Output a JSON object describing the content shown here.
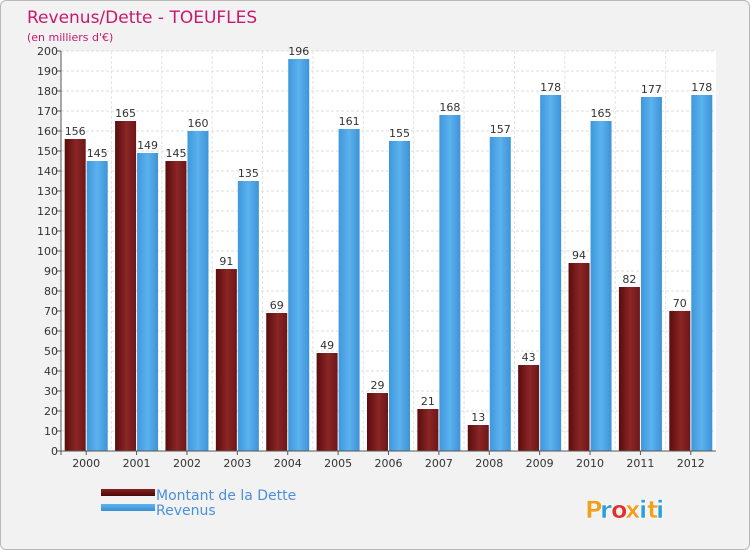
{
  "header": {
    "title": "Revenus/Dette - TOEUFLES",
    "subtitle": "(en milliers d'€)"
  },
  "brand": {
    "letters": [
      "P",
      "r",
      "o",
      "x",
      "i",
      "t",
      "i"
    ],
    "colors": [
      "#f0a020",
      "#2aa0d8",
      "#e03030",
      "#f0a020",
      "#2aa0d8",
      "#f0a020",
      "#2aa0d8"
    ]
  },
  "colors": {
    "dette": "#7b1a1a",
    "revenus": "#4aa3e6",
    "title": "#c8186e",
    "legend_text": "#4a90d9",
    "axis": "#555555"
  },
  "chart_data": {
    "type": "bar",
    "title": "Revenus/Dette - TOEUFLES",
    "ylabel": "(en milliers d'€)",
    "xlabel": "",
    "categories": [
      "2000",
      "2001",
      "2002",
      "2003",
      "2004",
      "2005",
      "2006",
      "2007",
      "2008",
      "2009",
      "2010",
      "2011",
      "2012"
    ],
    "series": [
      {
        "name": "Montant de la Dette",
        "key": "dette",
        "values": [
          156,
          165,
          145,
          91,
          69,
          49,
          29,
          21,
          13,
          43,
          94,
          82,
          70
        ]
      },
      {
        "name": "Revenus",
        "key": "revenus",
        "values": [
          145,
          149,
          160,
          135,
          196,
          161,
          155,
          168,
          157,
          178,
          165,
          177,
          178
        ]
      }
    ],
    "ylim": [
      0,
      200
    ],
    "ytick_step": 10,
    "grid": true,
    "legend": "bottom-left"
  }
}
